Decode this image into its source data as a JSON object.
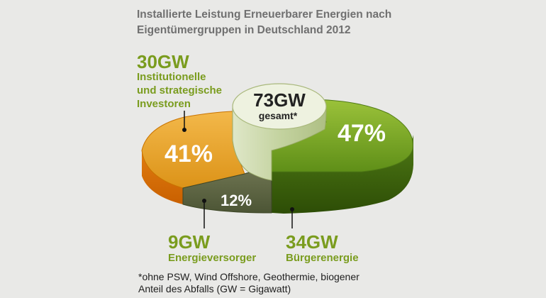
{
  "title": "Installierte Leistung Erneuerbarer Energien nach\nEigentümergruppen in Deutschland 2012",
  "footnote": "*ohne PSW, Wind Offshore, Geothermie, biogener\n Anteil des Abfalls (GW = Gigawatt)",
  "chart_data": {
    "type": "pie",
    "title": "Installierte Leistung Erneuerbarer Energien nach Eigentümergruppen in Deutschland 2012",
    "total": {
      "value": "73GW",
      "label": "gesamt*"
    },
    "slices": [
      {
        "name": "Bürgerenergie",
        "value_gw": 34,
        "value_label": "34GW",
        "percent": 47,
        "percent_label": "47%",
        "color": "#6f9a1f"
      },
      {
        "name": "Energieversorger",
        "value_gw": 9,
        "value_label": "9GW",
        "percent": 12,
        "percent_label": "12%",
        "color": "#4a5a2e"
      },
      {
        "name": "Institutionelle und strategische Investoren",
        "value_gw": 30,
        "value_label": "30GW",
        "percent": 41,
        "percent_label": "41%",
        "color": "#e39a22"
      }
    ],
    "callouts": {
      "investors": [
        "Institutionelle",
        "und strategische",
        "Investoren"
      ],
      "utilities": [
        "Energieversorger"
      ],
      "citizens": [
        "Bürgerenergie"
      ]
    }
  }
}
